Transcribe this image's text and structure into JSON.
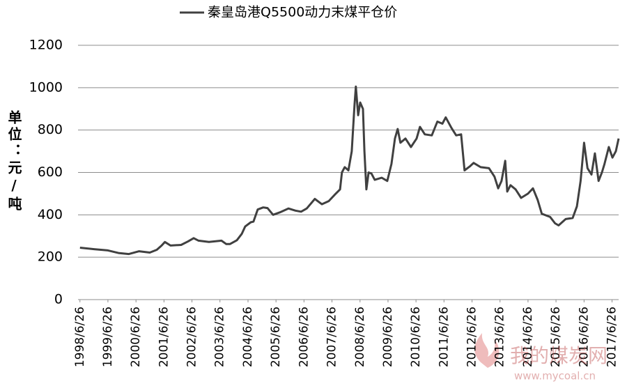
{
  "chart_data": {
    "type": "line",
    "legend_position": "top",
    "ylabel": "单位：元/吨",
    "watermark": "我的煤炭网",
    "watermark_url": "www.mycoal.cn",
    "xlim": [
      "1998/6/1",
      "2017/9/20"
    ],
    "xticks": [
      "1998/6/26",
      "1999/6/26",
      "2000/6/26",
      "2001/6/26",
      "2002/6/26",
      "2003/6/26",
      "2004/6/26",
      "2005/6/26",
      "2006/6/26",
      "2007/6/26",
      "2008/6/26",
      "2009/6/26",
      "2010/6/26",
      "2011/6/26",
      "2012/6/26",
      "2013/6/26",
      "2014/6/26",
      "2015/6/26",
      "2016/6/26",
      "2017/6/26"
    ],
    "ylim": [
      0,
      1200
    ],
    "yticks": [
      0,
      200,
      400,
      600,
      800,
      1000,
      1200
    ],
    "grid": true,
    "x": [
      "1998/6/26",
      "1998/12/26",
      "1999/6/26",
      "1999/11/10",
      "2000/3/25",
      "2000/8/6",
      "2000/12/23",
      "2001/3/25",
      "2001/5/26",
      "2001/7/8",
      "2001/9/20",
      "2002/2/5",
      "2002/5/7",
      "2002/7/18",
      "2002/9/20",
      "2003/2/2",
      "2003/7/16",
      "2003/9/17",
      "2003/11/3",
      "2004/2/2",
      "2004/4/5",
      "2004/5/20",
      "2004/8/1",
      "2004/9/5",
      "2004/10/30",
      "2005/1/10",
      "2005/3/7",
      "2005/5/19",
      "2005/8/17",
      "2005/12/5",
      "2006/3/7",
      "2006/5/19",
      "2006/8/1",
      "2006/11/14",
      "2007/2/14",
      "2007/5/15",
      "2007/8/15",
      "2007/10/9",
      "2007/11/3",
      "2007/12/9",
      "2008/1/26",
      "2008/3/10",
      "2008/4/15",
      "2008/5/3",
      "2008/6/2",
      "2008/6/28",
      "2008/8/3",
      "2008/8/22",
      "2008/9/17",
      "2008/10/16",
      "2008/11/21",
      "2009/1/4",
      "2009/4/5",
      "2009/6/16",
      "2009/8/10",
      "2009/9/24",
      "2009/10/30",
      "2009/12/5",
      "2010/2/9",
      "2010/4/21",
      "2010/7/4",
      "2010/8/17",
      "2010/10/19",
      "2011/1/18",
      "2011/4/1",
      "2011/6/5",
      "2011/7/19",
      "2011/10/1",
      "2011/12/2",
      "2012/2/5",
      "2012/3/20",
      "2012/6/2",
      "2012/7/16",
      "2012/10/16",
      "2013/2/2",
      "2013/4/15",
      "2013/6/2",
      "2013/7/16",
      "2013/9/2",
      "2013/9/28",
      "2013/11/10",
      "2014/1/15",
      "2014/3/28",
      "2014/6/26",
      "2014/8/29",
      "2014/10/30",
      "2014/12/23",
      "2015/4/11",
      "2015/6/13",
      "2015/7/30",
      "2015/10/30",
      "2016/1/29",
      "2016/3/25",
      "2016/5/12",
      "2016/6/26",
      "2016/8/10",
      "2016/10/1",
      "2016/11/14",
      "2017/1/1",
      "2017/2/14",
      "2017/3/20",
      "2017/5/15",
      "2017/7/1",
      "2017/8/15",
      "2017/9/20"
    ],
    "series": [
      {
        "name": "秦皇岛港Q5500动力末煤平仓价",
        "color": "#404040",
        "values": [
          245,
          238,
          232,
          220,
          215,
          228,
          222,
          235,
          255,
          272,
          255,
          258,
          275,
          290,
          278,
          272,
          278,
          262,
          262,
          280,
          310,
          345,
          365,
          368,
          425,
          435,
          432,
          400,
          412,
          430,
          420,
          415,
          430,
          475,
          450,
          465,
          500,
          520,
          600,
          625,
          610,
          700,
          920,
          1005,
          870,
          930,
          900,
          700,
          520,
          600,
          595,
          565,
          575,
          560,
          640,
          760,
          805,
          740,
          760,
          720,
          760,
          815,
          780,
          775,
          840,
          830,
          860,
          810,
          775,
          780,
          610,
          630,
          645,
          625,
          620,
          580,
          525,
          560,
          655,
          510,
          540,
          520,
          480,
          500,
          525,
          470,
          405,
          390,
          360,
          350,
          380,
          385,
          440,
          560,
          740,
          620,
          590,
          690,
          560,
          600,
          640,
          720,
          670,
          700,
          760
        ]
      }
    ]
  }
}
